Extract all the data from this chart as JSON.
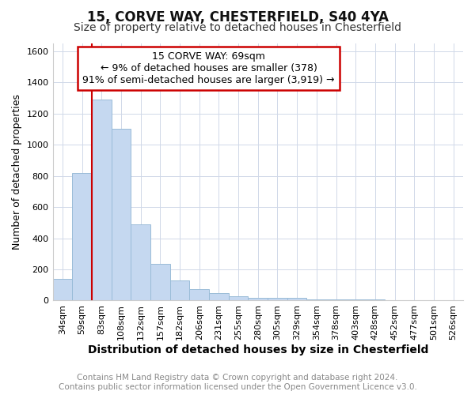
{
  "title": "15, CORVE WAY, CHESTERFIELD, S40 4YA",
  "subtitle": "Size of property relative to detached houses in Chesterfield",
  "xlabel": "Distribution of detached houses by size in Chesterfield",
  "ylabel": "Number of detached properties",
  "footer_line1": "Contains HM Land Registry data © Crown copyright and database right 2024.",
  "footer_line2": "Contains public sector information licensed under the Open Government Licence v3.0.",
  "categories": [
    "34sqm",
    "59sqm",
    "83sqm",
    "108sqm",
    "132sqm",
    "157sqm",
    "182sqm",
    "206sqm",
    "231sqm",
    "255sqm",
    "280sqm",
    "305sqm",
    "329sqm",
    "354sqm",
    "378sqm",
    "403sqm",
    "428sqm",
    "452sqm",
    "477sqm",
    "501sqm",
    "526sqm"
  ],
  "values": [
    140,
    820,
    1290,
    1100,
    490,
    235,
    130,
    75,
    50,
    30,
    20,
    20,
    15,
    8,
    6,
    5,
    5,
    4,
    4,
    3,
    3
  ],
  "bar_color": "#c5d8f0",
  "bar_edge_color": "#9abcd8",
  "vline_x": 1.5,
  "annotation_text_line1": "15 CORVE WAY: 69sqm",
  "annotation_text_line2": "← 9% of detached houses are smaller (378)",
  "annotation_text_line3": "91% of semi-detached houses are larger (3,919) →",
  "annotation_box_color": "#ffffff",
  "annotation_box_edge_color": "#cc0000",
  "vline_color": "#cc0000",
  "ylim": [
    0,
    1650
  ],
  "yticks": [
    0,
    200,
    400,
    600,
    800,
    1000,
    1200,
    1400,
    1600
  ],
  "grid_color": "#d0d8e8",
  "bg_color": "#ffffff",
  "title_fontsize": 12,
  "subtitle_fontsize": 10,
  "xlabel_fontsize": 10,
  "ylabel_fontsize": 9,
  "tick_fontsize": 8,
  "annotation_fontsize": 9,
  "footer_fontsize": 7.5,
  "footer_color": "#888888"
}
